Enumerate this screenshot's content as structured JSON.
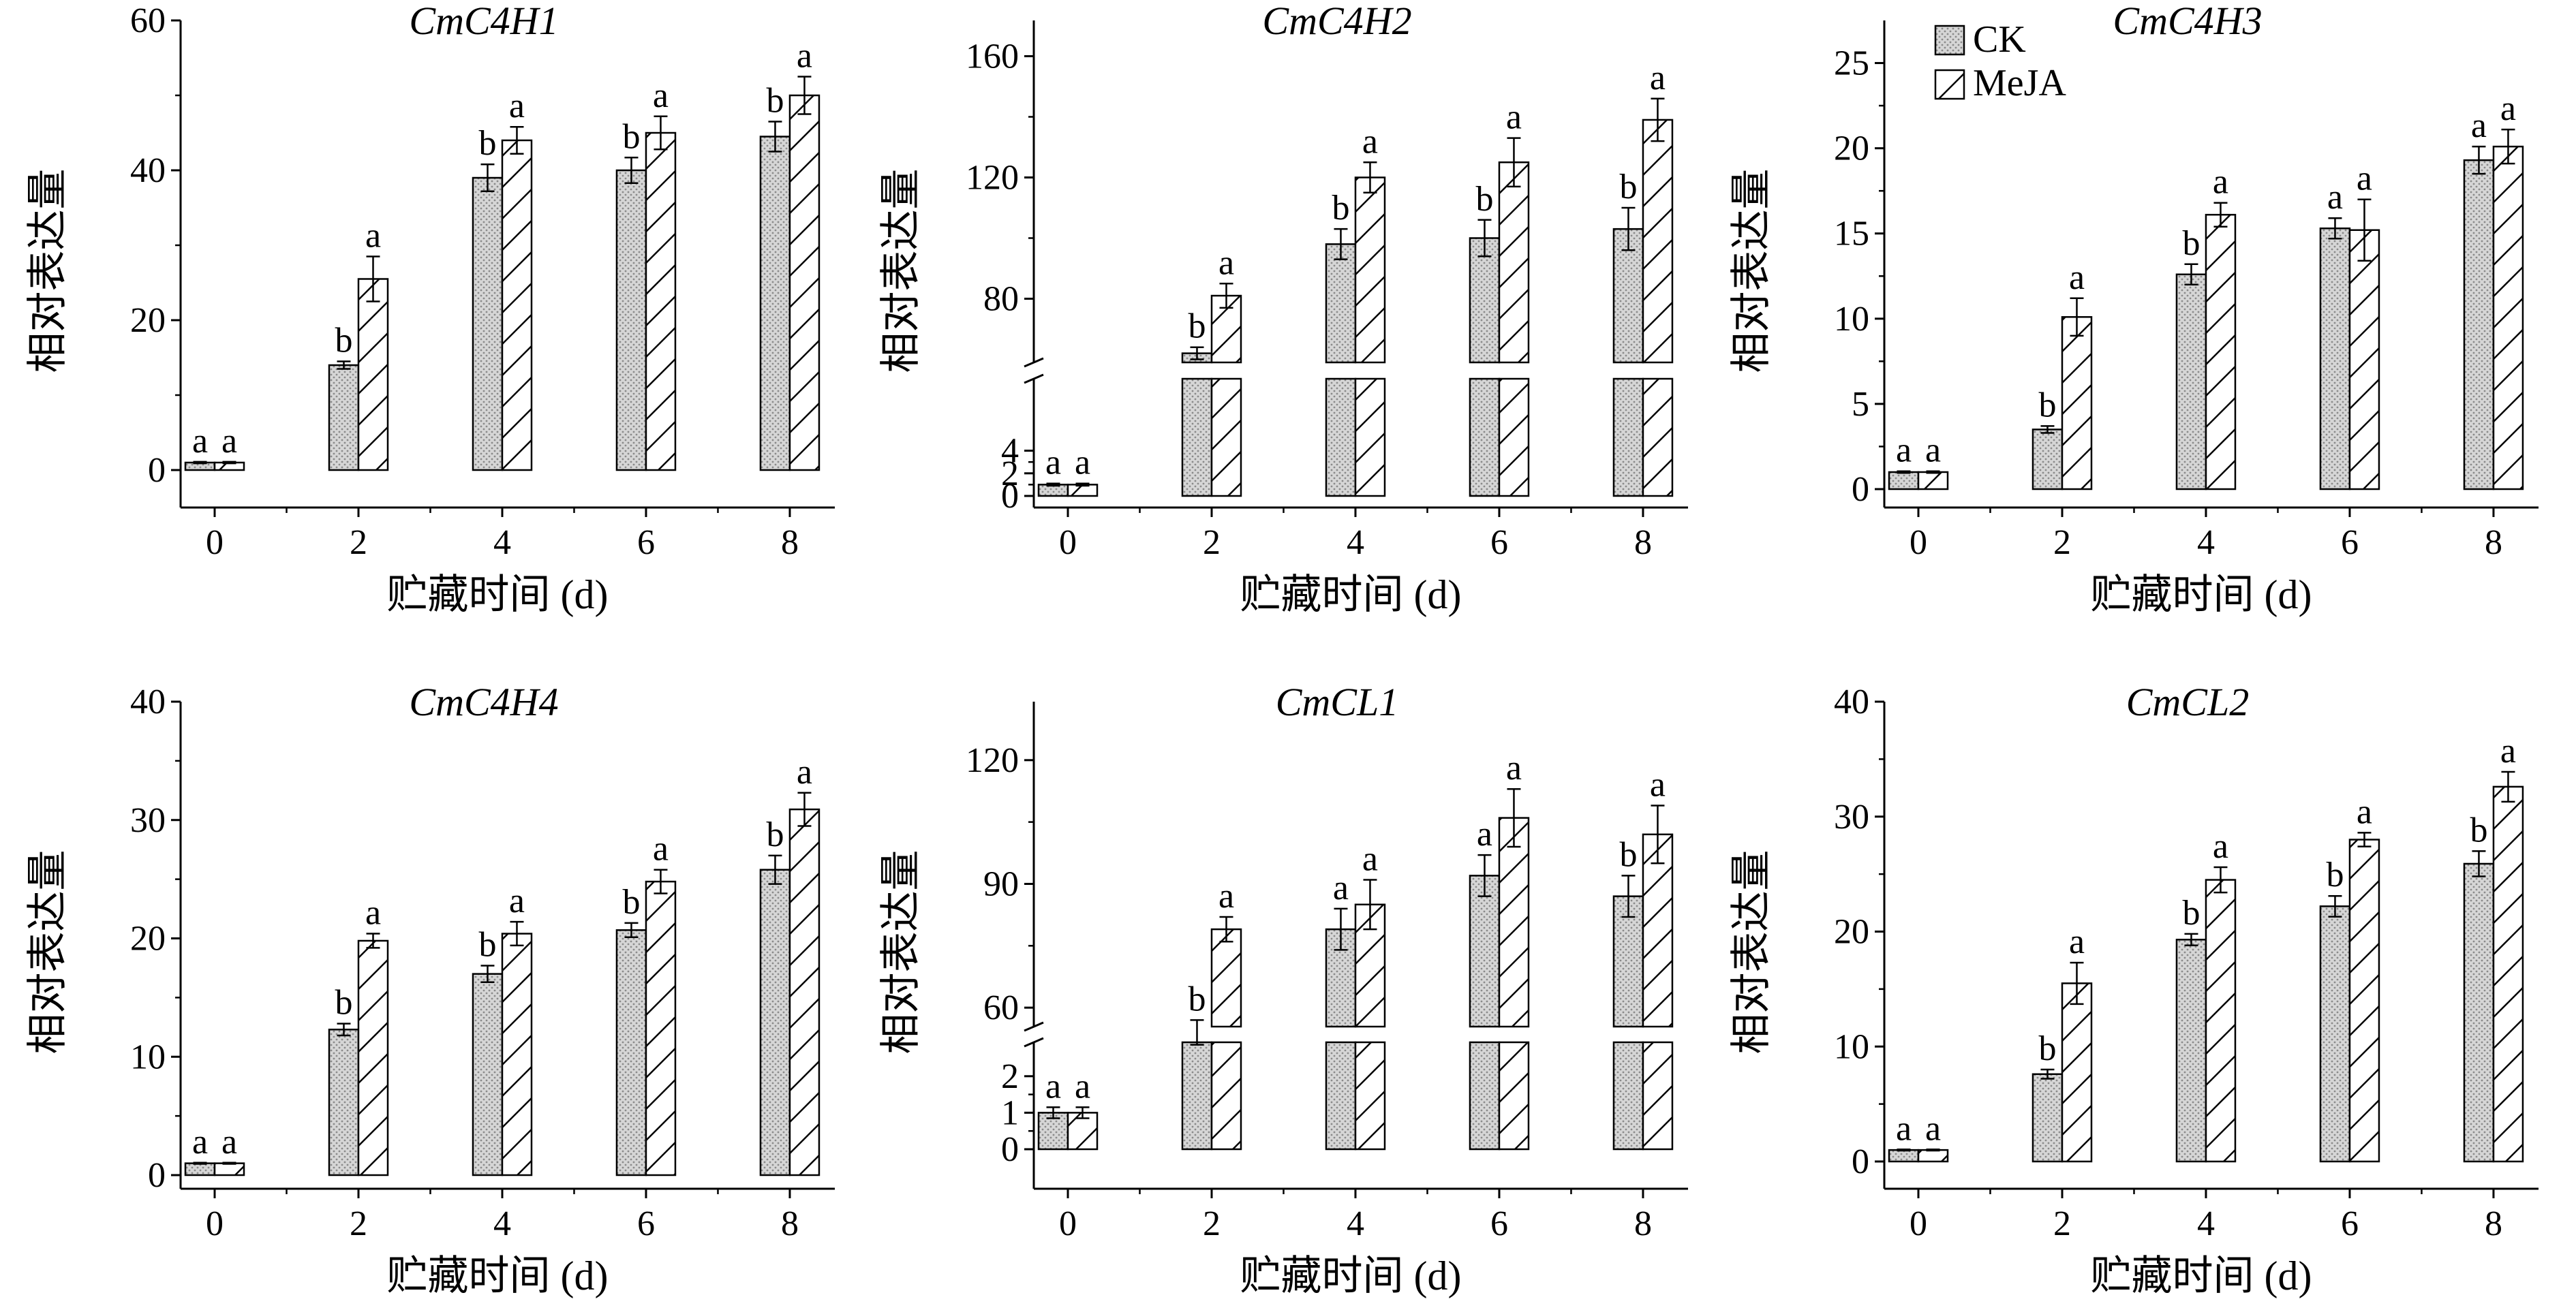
{
  "colors": {
    "ck_fill": "#d6d6d6",
    "ck_dots": "#8a8a8a",
    "meja_fill": "#ffffff",
    "stroke": "#000000"
  },
  "legend": {
    "ck": "CK",
    "meja": "MeJA"
  },
  "chart_data": [
    {
      "type": "bar",
      "title": "CmC4H1",
      "xlabel": "贮藏时间 (d)",
      "ylabel": "相对表达量",
      "categories": [
        "0",
        "2",
        "4",
        "6",
        "8"
      ],
      "ylim": [
        0,
        60
      ],
      "yticks": [
        0,
        20,
        40,
        60
      ],
      "broken_axis": false,
      "series": [
        {
          "name": "CK",
          "values": [
            1,
            14,
            39,
            40,
            44.5
          ],
          "errors": [
            0.1,
            0.5,
            1.8,
            1.7,
            2
          ],
          "letters": [
            "a",
            "b",
            "b",
            "b",
            "b"
          ]
        },
        {
          "name": "MeJA",
          "values": [
            1,
            25.5,
            44,
            45,
            50
          ],
          "errors": [
            0.1,
            3,
            1.8,
            2.2,
            2.5
          ],
          "letters": [
            "a",
            "a",
            "a",
            "a",
            "a"
          ]
        }
      ]
    },
    {
      "type": "bar",
      "title": "CmC4H2",
      "xlabel": "贮藏时间 (d)",
      "ylabel": "相对表达量",
      "categories": [
        "0",
        "2",
        "4",
        "6",
        "8"
      ],
      "ylim": [
        0,
        170
      ],
      "yticks": [
        0,
        2,
        4,
        80,
        120,
        160
      ],
      "broken_axis": true,
      "low_max": 5,
      "high_min": 50,
      "series": [
        {
          "name": "CK",
          "values": [
            1,
            62,
            98,
            100,
            103
          ],
          "errors": [
            0.1,
            2,
            5,
            6,
            7
          ],
          "letters": [
            "a",
            "b",
            "b",
            "b",
            "b"
          ]
        },
        {
          "name": "MeJA",
          "values": [
            1,
            81,
            120,
            125,
            139
          ],
          "errors": [
            0.1,
            4,
            5,
            8,
            7
          ],
          "letters": [
            "a",
            "a",
            "a",
            "a",
            "a"
          ]
        }
      ]
    },
    {
      "type": "bar",
      "title": "CmC4H3",
      "xlabel": "贮藏时间 (d)",
      "ylabel": "相对表达量",
      "categories": [
        "0",
        "2",
        "4",
        "6",
        "8"
      ],
      "ylim": [
        0,
        27.5
      ],
      "yticks": [
        0,
        5,
        10,
        15,
        20,
        25
      ],
      "broken_axis": false,
      "series": [
        {
          "name": "CK",
          "values": [
            1,
            3.5,
            12.6,
            15.3,
            19.3
          ],
          "errors": [
            0.05,
            0.2,
            0.6,
            0.6,
            0.8
          ],
          "letters": [
            "a",
            "b",
            "b",
            "a",
            "a"
          ]
        },
        {
          "name": "MeJA",
          "values": [
            1,
            10.1,
            16.1,
            15.2,
            20.1
          ],
          "errors": [
            0.05,
            1.1,
            0.7,
            1.8,
            1
          ],
          "letters": [
            "a",
            "a",
            "a",
            "a",
            "a"
          ]
        }
      ]
    },
    {
      "type": "bar",
      "title": "CmC4H4",
      "xlabel": "贮藏时间 (d)",
      "ylabel": "相对表达量",
      "categories": [
        "0",
        "2",
        "4",
        "6",
        "8"
      ],
      "ylim": [
        0,
        40
      ],
      "yticks": [
        0,
        10,
        20,
        30,
        40
      ],
      "broken_axis": false,
      "series": [
        {
          "name": "CK",
          "values": [
            1,
            12.3,
            17,
            20.7,
            25.8
          ],
          "errors": [
            0.05,
            0.5,
            0.7,
            0.6,
            1.2
          ],
          "letters": [
            "a",
            "b",
            "b",
            "b",
            "b"
          ]
        },
        {
          "name": "MeJA",
          "values": [
            1,
            19.8,
            20.4,
            24.8,
            30.9
          ],
          "errors": [
            0.05,
            0.6,
            1,
            1,
            1.4
          ],
          "letters": [
            "a",
            "a",
            "a",
            "a",
            "a"
          ]
        }
      ]
    },
    {
      "type": "bar",
      "title": "CmCL1",
      "xlabel": "贮藏时间 (d)",
      "ylabel": "相对表达量",
      "categories": [
        "0",
        "2",
        "4",
        "6",
        "8"
      ],
      "ylim": [
        0,
        135
      ],
      "yticks": [
        0,
        1,
        2,
        60,
        90,
        120
      ],
      "broken_axis": true,
      "low_max": 2.5,
      "high_min": 45,
      "series": [
        {
          "name": "CK",
          "values": [
            1,
            54,
            79,
            92,
            87
          ],
          "errors": [
            0.15,
            3,
            5,
            5,
            5
          ],
          "letters": [
            "a",
            "b",
            "a",
            "a",
            "b"
          ]
        },
        {
          "name": "MeJA",
          "values": [
            1,
            79,
            85,
            106,
            102
          ],
          "errors": [
            0.15,
            3,
            6,
            7,
            7
          ],
          "letters": [
            "a",
            "a",
            "a",
            "a",
            "a"
          ]
        }
      ]
    },
    {
      "type": "bar",
      "title": "CmCL2",
      "xlabel": "贮藏时间 (d)",
      "ylabel": "相对表达量",
      "categories": [
        "0",
        "2",
        "4",
        "6",
        "8"
      ],
      "ylim": [
        0,
        40
      ],
      "yticks": [
        0,
        10,
        20,
        30,
        40
      ],
      "broken_axis": false,
      "series": [
        {
          "name": "CK",
          "values": [
            1,
            7.6,
            19.3,
            22.2,
            25.9
          ],
          "errors": [
            0.05,
            0.4,
            0.5,
            0.9,
            1.1
          ],
          "letters": [
            "a",
            "b",
            "b",
            "b",
            "b"
          ]
        },
        {
          "name": "MeJA",
          "values": [
            1,
            15.5,
            24.5,
            28,
            32.6
          ],
          "errors": [
            0.05,
            1.8,
            1.1,
            0.6,
            1.3
          ],
          "letters": [
            "a",
            "a",
            "a",
            "a",
            "a"
          ]
        }
      ]
    }
  ]
}
